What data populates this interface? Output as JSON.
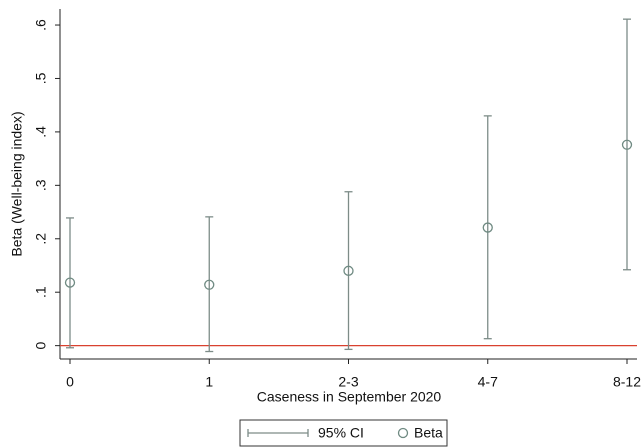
{
  "chart_data": {
    "type": "errorbar",
    "x_label": "Caseness in September 2020",
    "y_label": "Beta (Well-being index)",
    "categories": [
      "0",
      "1",
      "2-3",
      "4-7",
      "8-12"
    ],
    "series": [
      {
        "name": "Beta",
        "color": "#6f8a82",
        "values": [
          0.118,
          0.114,
          0.14,
          0.221,
          0.376
        ]
      }
    ],
    "error_bars": {
      "name": "95% CI",
      "color": "#7d8c88",
      "lower": [
        -0.004,
        -0.011,
        -0.007,
        0.013,
        0.142
      ],
      "upper": [
        0.239,
        0.241,
        0.288,
        0.43,
        0.611
      ]
    },
    "reference_line": {
      "value": 0,
      "color": "#d9412f"
    },
    "ylim": [
      -0.025,
      0.63
    ],
    "yticks": [
      {
        "value": 0,
        "label": "0"
      },
      {
        "value": 0.1,
        "label": ".1"
      },
      {
        "value": 0.2,
        "label": ".2"
      },
      {
        "value": 0.3,
        "label": ".3"
      },
      {
        "value": 0.4,
        "label": ".4"
      },
      {
        "value": 0.5,
        "label": ".5"
      },
      {
        "value": 0.6,
        "label": ".6"
      }
    ],
    "grid": false
  }
}
